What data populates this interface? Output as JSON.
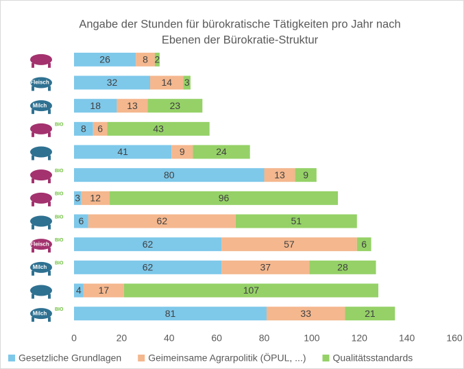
{
  "chart_data": {
    "type": "stacked_barh",
    "title": [
      "Angabe der Stunden für bürokratische Tätigkeiten pro Jahr nach",
      "Ebenen der Bürokratie-Struktur"
    ],
    "categories": [
      null,
      null,
      null,
      null,
      null,
      null,
      null,
      null,
      null,
      null,
      null,
      null
    ],
    "icons": [
      {},
      {
        "tag": "Fleisch"
      },
      {
        "tag": "Milch"
      },
      {
        "badge": "BIO"
      },
      {},
      {
        "badge": "BIO"
      },
      {
        "badge": "BIO"
      },
      {
        "badge": "BIO"
      },
      {
        "tag": "Fleisch",
        "badge": "BIO"
      },
      {
        "tag": "Milch",
        "badge": "BIO"
      },
      {},
      {
        "tag": "Milch",
        "badge": "BIO"
      }
    ],
    "series": [
      {
        "name": "Gesetzliche Grundlagen",
        "color": "#7ec8ea",
        "values": [
          26,
          32,
          18,
          8,
          41,
          80,
          3,
          6,
          62,
          62,
          4,
          81
        ]
      },
      {
        "name": "Geimeinsame Agrarpolitik (ÖPUL, ...)",
        "color": "#f4b78e",
        "values": [
          8,
          14,
          13,
          6,
          9,
          13,
          12,
          62,
          57,
          37,
          17,
          33
        ]
      },
      {
        "name": "Qualitätsstandards",
        "color": "#95d167",
        "values": [
          2,
          3,
          23,
          43,
          24,
          9,
          96,
          51,
          6,
          28,
          107,
          21
        ]
      }
    ],
    "xlim": [
      0,
      160
    ],
    "xticks": [
      0,
      20,
      40,
      60,
      80,
      100,
      120,
      140,
      160
    ],
    "grid": false,
    "legend": "bottom"
  }
}
